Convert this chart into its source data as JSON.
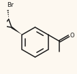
{
  "bg_color": "#fdf8f0",
  "bond_color": "#1a1a1a",
  "text_color": "#1a1a1a",
  "br_label": "Br",
  "o_label": "O",
  "line_width": 1.1,
  "font_size_br": 6.5,
  "font_size_o": 6.0
}
